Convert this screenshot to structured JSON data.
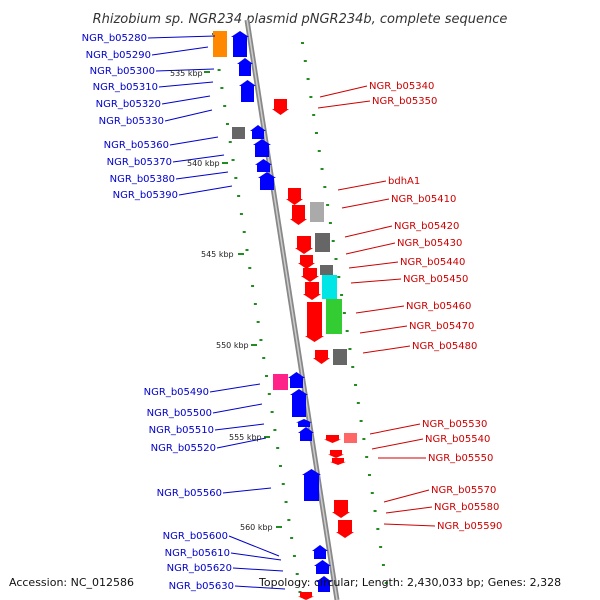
{
  "title": "Rhizobium sp. NGR234 plasmid pNGR234b, complete sequence",
  "footer": {
    "accession": "Accession: NC_012586",
    "topology": "Topology: circular; Length: 2,430,033 bp; Genes: 2,328"
  },
  "colors": {
    "plus_strand": "#0000ff",
    "minus_strand": "#ff0000",
    "backbone": "#888888",
    "tick": "#228b22",
    "label_left": "#0000cc",
    "label_right": "#cc0000"
  },
  "scale": [
    "535 kbp",
    "540 kbp",
    "545 kbp",
    "550 kbp",
    "555 kbp",
    "560 kbp"
  ],
  "left_labels": [
    "NGR_b05280",
    "NGR_b05290",
    "NGR_b05300",
    "NGR_b05310",
    "NGR_b05320",
    "NGR_b05330",
    "NGR_b05360",
    "NGR_b05370",
    "NGR_b05380",
    "NGR_b05390",
    "NGR_b05490",
    "NGR_b05500",
    "NGR_b05510",
    "NGR_b05520",
    "NGR_b05560",
    "NGR_b05600",
    "NGR_b05610",
    "NGR_b05620",
    "NGR_b05630"
  ],
  "right_labels": [
    "NGR_b05340",
    "NGR_b05350",
    "bdhA1",
    "NGR_b05410",
    "NGR_b05420",
    "NGR_b05430",
    "NGR_b05440",
    "NGR_b05450",
    "NGR_b05460",
    "NGR_b05470",
    "NGR_b05480",
    "NGR_b05530",
    "NGR_b05540",
    "NGR_b05550",
    "NGR_b05570",
    "NGR_b05580",
    "NGR_b05590"
  ]
}
